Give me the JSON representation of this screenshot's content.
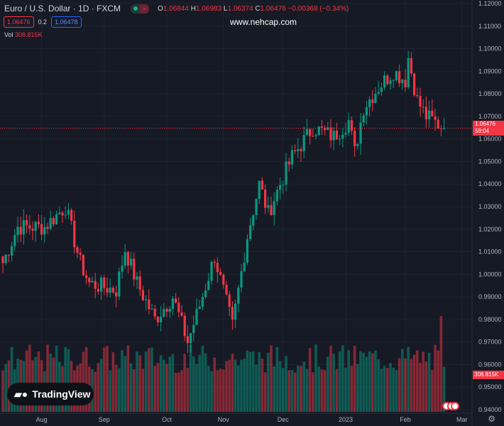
{
  "header": {
    "symbol": "Euro / U.S. Dollar · 1D · FXCM",
    "o_label": "O",
    "o": "1.06844",
    "h_label": "H",
    "h": "1.06983",
    "l_label": "L",
    "l": "1.06374",
    "c_label": "C",
    "c": "1.06476",
    "change": "−0.00368 (−0.34%)",
    "bid": "1.06476",
    "spread": "0.2",
    "ask": "1.06478",
    "vol_label": "Vol",
    "vol": "308.815K"
  },
  "watermark": "www.nehcap.com",
  "price_label": {
    "price": "1.06476",
    "countdown": "59:04"
  },
  "volume_label": "308.815K",
  "brand": "TradingView",
  "colors": {
    "up": "#089981",
    "down": "#f23645",
    "bg": "#161a25"
  },
  "chart_data": {
    "type": "candlestick",
    "title": "Euro / U.S. Dollar · 1D · FXCM",
    "ylim": [
      0.94,
      1.12
    ],
    "y_ticks": [
      "1.12000",
      "1.11000",
      "1.10000",
      "1.09000",
      "1.08000",
      "1.07000",
      "1.06000",
      "1.05000",
      "1.04000",
      "1.03000",
      "1.02000",
      "1.01000",
      "1.00000",
      "0.99000",
      "0.98000",
      "0.97000",
      "0.96000",
      "0.95000",
      "0.94000"
    ],
    "x_ticks": [
      {
        "label": "Aug",
        "i": 13
      },
      {
        "label": "Sep",
        "i": 34
      },
      {
        "label": "Oct",
        "i": 55
      },
      {
        "label": "Nov",
        "i": 74
      },
      {
        "label": "Dec",
        "i": 94
      },
      {
        "label": "2023",
        "i": 115
      },
      {
        "label": "Feb",
        "i": 135
      },
      {
        "label": "Mar",
        "i": 154
      }
    ],
    "candle_count": 149,
    "close_keypoints": [
      [
        0,
        1.005
      ],
      [
        5,
        1.021
      ],
      [
        14,
        1.021
      ],
      [
        21,
        1.03
      ],
      [
        26,
        1.005
      ],
      [
        29,
        0.996
      ],
      [
        38,
        0.993
      ],
      [
        41,
        1.011
      ],
      [
        45,
        0.996
      ],
      [
        51,
        0.98
      ],
      [
        57,
        0.99
      ],
      [
        62,
        0.97
      ],
      [
        66,
        0.986
      ],
      [
        71,
        1.008
      ],
      [
        77,
        0.977
      ],
      [
        82,
        1.017
      ],
      [
        86,
        1.04
      ],
      [
        89,
        1.027
      ],
      [
        93,
        1.04
      ],
      [
        97,
        1.052
      ],
      [
        104,
        1.065
      ],
      [
        111,
        1.061
      ],
      [
        116,
        1.068
      ],
      [
        118,
        1.054
      ],
      [
        121,
        1.074
      ],
      [
        126,
        1.083
      ],
      [
        131,
        1.09
      ],
      [
        135,
        1.086
      ],
      [
        136,
        1.096
      ],
      [
        139,
        1.077
      ],
      [
        142,
        1.07
      ],
      [
        148,
        1.06476
      ]
    ],
    "last_close": 1.06476,
    "last_volume": "308.815K"
  }
}
